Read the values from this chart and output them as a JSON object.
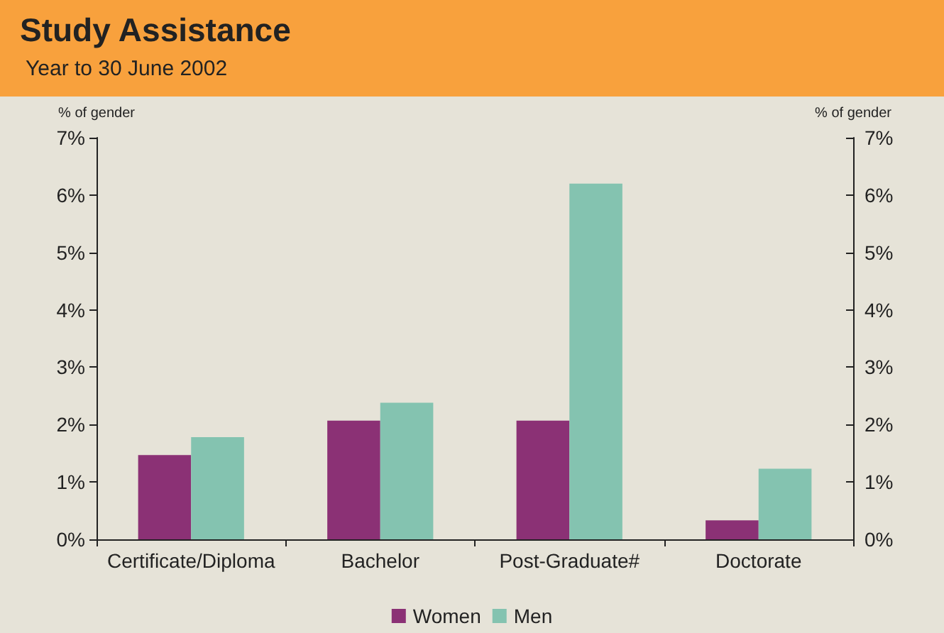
{
  "chart_data": {
    "type": "bar",
    "title": "Study Assistance",
    "subtitle": "Year to 30 June 2002",
    "ylabel": "% of gender",
    "y2label": "% of gender",
    "categories": [
      "Certificate/Diploma",
      "Bachelor",
      "Post-Graduate#",
      "Doctorate"
    ],
    "series": [
      {
        "name": "Women",
        "color": "#8b3175",
        "values": [
          1.47,
          2.07,
          2.07,
          0.33
        ]
      },
      {
        "name": "Men",
        "color": "#84c3b0",
        "values": [
          1.78,
          2.38,
          6.2,
          1.23
        ]
      }
    ],
    "ylim": [
      0,
      7
    ],
    "yticks": [
      {
        "value": 0,
        "label": "0%"
      },
      {
        "value": 1,
        "label": "1%"
      },
      {
        "value": 2,
        "label": "2%"
      },
      {
        "value": 3,
        "label": "3%"
      },
      {
        "value": 4,
        "label": "4%"
      },
      {
        "value": 5,
        "label": "5%"
      },
      {
        "value": 6,
        "label": "6%"
      },
      {
        "value": 7,
        "label": "7%"
      }
    ],
    "y2lim": [
      0,
      7
    ],
    "y2ticks": [
      {
        "value": 0,
        "label": "0%"
      },
      {
        "value": 1,
        "label": "1%"
      },
      {
        "value": 2,
        "label": "2%"
      },
      {
        "value": 3,
        "label": "3%"
      },
      {
        "value": 4,
        "label": "4%"
      },
      {
        "value": 5,
        "label": "5%"
      },
      {
        "value": 6,
        "label": "6%"
      },
      {
        "value": 7,
        "label": "7%"
      }
    ],
    "grid": false,
    "legend": "bottom"
  }
}
